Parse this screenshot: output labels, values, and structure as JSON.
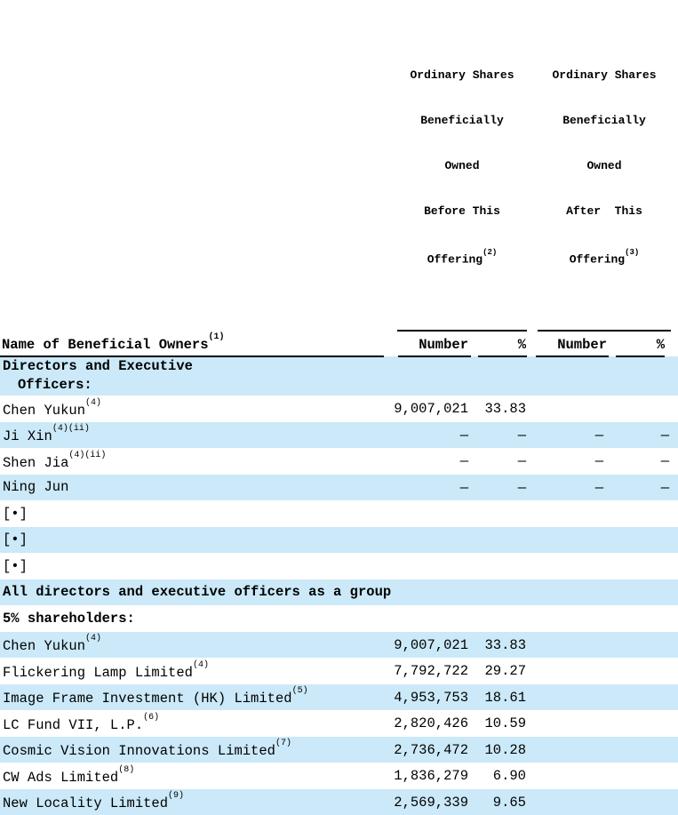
{
  "colors": {
    "row_shade": "#cbe9f8",
    "rule": "#000000"
  },
  "header": {
    "groups": [
      {
        "lines": [
          "Ordinary Shares",
          "Beneficially",
          "Owned",
          "Before This"
        ],
        "offering": "Offering",
        "sup": "(2)"
      },
      {
        "lines": [
          "Ordinary Shares",
          "Beneficially",
          "Owned",
          "After  This"
        ],
        "offering": "Offering",
        "sup": "(3)"
      }
    ],
    "name_col": {
      "label": "Name of Beneficial Owners",
      "sup": "(1)"
    },
    "sub_cols": [
      "Number",
      "%",
      "Number",
      "%"
    ]
  },
  "table": {
    "rows": [
      {
        "label": "Directors and Executive",
        "label2": "Officers:",
        "sup": "",
        "bold": true,
        "shaded": true,
        "cells": [
          "",
          "",
          "",
          ""
        ]
      },
      {
        "label": "Chen Yukun",
        "sup": "(4)",
        "bold": false,
        "shaded": false,
        "cells": [
          "9,007,021",
          "33.83",
          "",
          ""
        ]
      },
      {
        "label": "Ji Xin",
        "sup": "(4)(ii)",
        "bold": false,
        "shaded": true,
        "cells": [
          "—",
          "—",
          "—",
          "—"
        ]
      },
      {
        "label": "Shen Jia",
        "sup": "(4)(ii)",
        "bold": false,
        "shaded": false,
        "cells": [
          "—",
          "—",
          "—",
          "—"
        ]
      },
      {
        "label": "Ning Jun",
        "sup": "",
        "bold": false,
        "shaded": true,
        "cells": [
          "—",
          "—",
          "—",
          "—"
        ]
      },
      {
        "label": "[•]",
        "sup": "",
        "bold": false,
        "shaded": false,
        "cells": [
          "",
          "",
          "",
          ""
        ]
      },
      {
        "label": "[•]",
        "sup": "",
        "bold": false,
        "shaded": true,
        "cells": [
          "",
          "",
          "",
          ""
        ]
      },
      {
        "label": "[•]",
        "sup": "",
        "bold": false,
        "shaded": false,
        "cells": [
          "",
          "",
          "",
          ""
        ]
      },
      {
        "label": "All directors and executive officers as a group",
        "sup": "",
        "bold": true,
        "shaded": true,
        "cells": [
          "",
          "",
          "",
          ""
        ]
      },
      {
        "label": "5% shareholders:",
        "sup": "",
        "bold": true,
        "shaded": false,
        "cells": [
          "",
          "",
          "",
          ""
        ]
      },
      {
        "label": "Chen Yukun",
        "sup": "(4)",
        "bold": false,
        "shaded": true,
        "cells": [
          "9,007,021",
          "33.83",
          "",
          ""
        ]
      },
      {
        "label": "Flickering Lamp Limited",
        "sup": "(4)",
        "bold": false,
        "shaded": false,
        "cells": [
          "7,792,722",
          "29.27",
          "",
          ""
        ]
      },
      {
        "label": "Image Frame Investment (HK) Limited",
        "sup": "(5)",
        "bold": false,
        "shaded": true,
        "cells": [
          "4,953,753",
          "18.61",
          "",
          ""
        ]
      },
      {
        "label": "LC Fund VII, L.P.",
        "sup": "(6)",
        "bold": false,
        "shaded": false,
        "cells": [
          "2,820,426",
          "10.59",
          "",
          ""
        ]
      },
      {
        "label": "Cosmic Vision Innovations Limited",
        "sup": "(7)",
        "bold": false,
        "shaded": true,
        "cells": [
          "2,736,472",
          "10.28",
          "",
          ""
        ]
      },
      {
        "label": "CW Ads Limited",
        "sup": "(8)",
        "bold": false,
        "shaded": false,
        "cells": [
          "1,836,279",
          "6.90",
          "",
          ""
        ]
      },
      {
        "label": "New Locality Limited",
        "sup": "(9)",
        "bold": false,
        "shaded": true,
        "cells": [
          "2,569,339",
          "9.65",
          "",
          ""
        ]
      }
    ]
  }
}
